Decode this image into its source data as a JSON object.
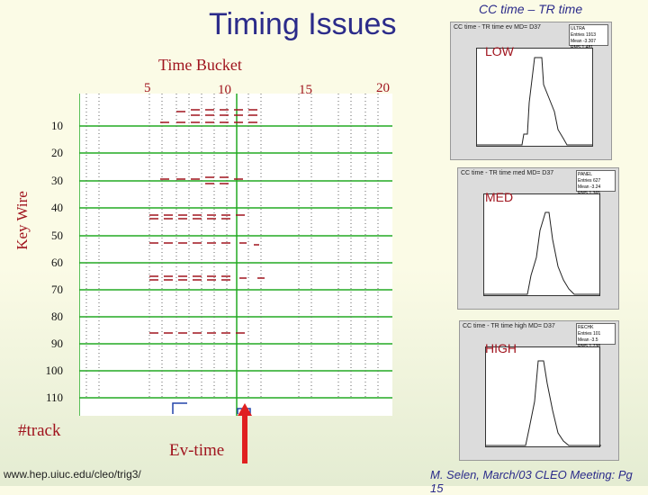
{
  "slide": {
    "title": "Timing Issues",
    "time_bucket_label": "Time Bucket",
    "x_ticks": [
      "5",
      "10",
      "15",
      "20"
    ],
    "key_wire_label": "Key Wire",
    "y_ticks": [
      "10",
      "20",
      "30",
      "40",
      "50",
      "60",
      "70",
      "80",
      "90",
      "100",
      "110"
    ],
    "track_label": "#track",
    "evtime_label": "Ev-time",
    "url": "www.hep.uiuc.edu/cleo/trig3/",
    "footer": "M. Selen, March/03 CLEO Meeting: Pg 15",
    "cc_title": "CC time – TR time"
  },
  "histograms": [
    {
      "tag": "LOW",
      "header": "CC time - TR time ev MD= D37",
      "stats": [
        "ULTRA",
        "Entries 1913",
        "Mean -3.307",
        "RMS 1.481"
      ]
    },
    {
      "tag": "MED",
      "header": "CC time - TR time med MD= D37",
      "stats": [
        "PANEL",
        "Entries 627",
        "Mean -3.24",
        "RMS 1.365"
      ]
    },
    {
      "tag": "HIGH",
      "header": "CC time - TR time high MD= D37",
      "stats": [
        "RECHK",
        "Entries 101",
        "Mean -3.5",
        "RMS 1.738"
      ]
    }
  ],
  "colors": {
    "title": "#2b2b8a",
    "label": "#a0141e",
    "grid": "#22aa22"
  }
}
